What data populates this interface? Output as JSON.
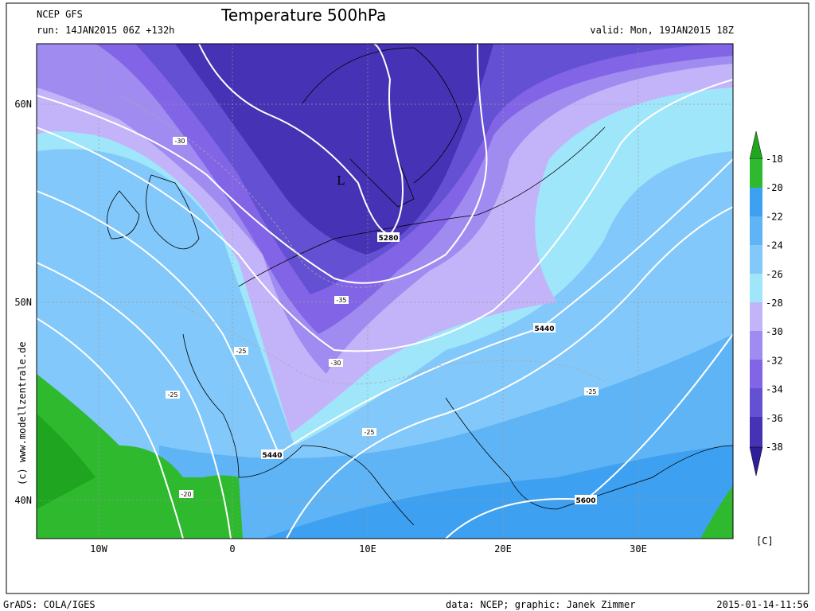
{
  "header": {
    "model": "NCEP GFS",
    "run": "run: 14JAN2015 06Z +132h",
    "title": "Temperature 500hPa",
    "valid": "valid: Mon, 19JAN2015 18Z"
  },
  "axes": {
    "lat_labels": [
      "60N",
      "50N",
      "40N"
    ],
    "lon_labels": [
      "10W",
      "0",
      "10E",
      "20E",
      "30E"
    ]
  },
  "colorbar": {
    "labels": [
      "-18",
      "-20",
      "-22",
      "-24",
      "-26",
      "-28",
      "-30",
      "-32",
      "-34",
      "-36",
      "-38"
    ],
    "unit": "[C]"
  },
  "map_labels": {
    "low": "L",
    "geopotential": [
      "5280",
      "5440",
      "5440",
      "5600"
    ],
    "temperature": [
      "-30",
      "-35",
      "-30",
      "-25",
      "-25",
      "-25",
      "-25",
      "-20"
    ]
  },
  "credit": "(c) www.modellzentrale.de",
  "footer": {
    "software": "GrADS: COLA/IGES",
    "source": "data: NCEP; graphic: Janek Zimmer",
    "timestamp": "2015-01-14-11:56"
  }
}
